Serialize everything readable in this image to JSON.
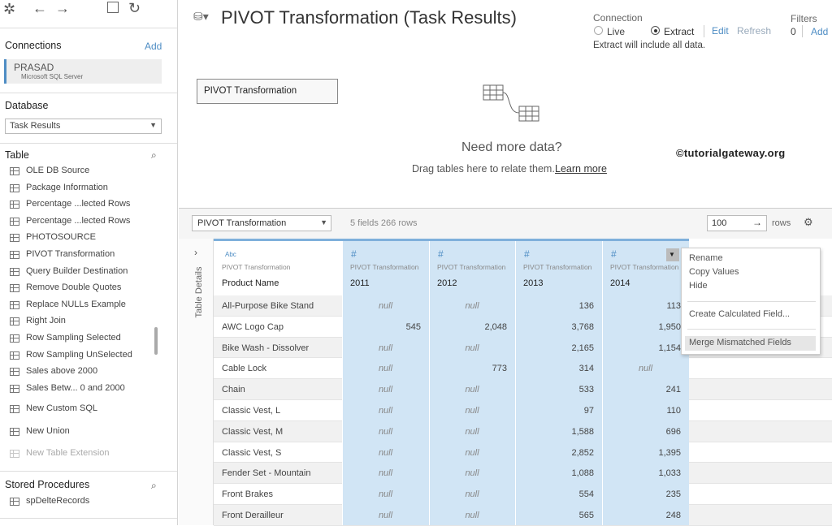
{
  "sidebar": {
    "connections_label": "Connections",
    "add": "Add",
    "connection": {
      "name": "PRASAD",
      "type": "Microsoft SQL Server"
    },
    "database_label": "Database",
    "database": "Task Results",
    "table_label": "Table",
    "tables": [
      "OLE DB Source",
      "Package Information",
      "Percentage ...lected Rows",
      "Percentage ...lected Rows",
      "PHOTOSOURCE",
      "PIVOT Transformation",
      "Query Builder Destination",
      "Remove Double Quotes",
      "Replace NULLs Example",
      "Right Join",
      "Row Sampling Selected",
      "Row Sampling UnSelected",
      "Sales above 2000",
      "Sales Betw... 0 and 2000"
    ],
    "actions": [
      "New Custom SQL",
      "New Union",
      "New Table Extension"
    ],
    "stored_procedures_label": "Stored Procedures",
    "procedures": [
      "spDelteRecords"
    ]
  },
  "header": {
    "title": "PIVOT Transformation (Task Results)",
    "connection_label": "Connection",
    "live": "Live",
    "extract": "Extract",
    "edit": "Edit",
    "refresh": "Refresh",
    "extract_note": "Extract will include all data.",
    "filters_label": "Filters",
    "filters_count": "0",
    "filters_add": "Add"
  },
  "canvas": {
    "table": "PIVOT Transformation",
    "prompt": "Need more data?",
    "hint": "Drag tables here to relate them.",
    "link": "Learn more",
    "watermark": "©tutorialgateway.org"
  },
  "grid_bar": {
    "source": "PIVOT Transformation",
    "summary": "5 fields 266 rows",
    "rows_value": "100",
    "rows_label": "rows"
  },
  "side_tab": "Table Details",
  "table": {
    "columns": [
      {
        "type": "Abc",
        "source": "PIVOT Transformation",
        "name": "Product Name"
      },
      {
        "type": "#",
        "source": "PIVOT Transformation",
        "name": "2011"
      },
      {
        "type": "#",
        "source": "PIVOT Transformation",
        "name": "2012"
      },
      {
        "type": "#",
        "source": "PIVOT Transformation",
        "name": "2013"
      },
      {
        "type": "#",
        "source": "PIVOT Transformation",
        "name": "2014"
      }
    ],
    "rows": [
      [
        "All-Purpose Bike Stand",
        "null",
        "null",
        "136",
        "113"
      ],
      [
        "AWC Logo Cap",
        "545",
        "2,048",
        "3,768",
        "1,950"
      ],
      [
        "Bike Wash - Dissolver",
        "null",
        "null",
        "2,165",
        "1,154"
      ],
      [
        "Cable Lock",
        "null",
        "773",
        "314",
        "null"
      ],
      [
        "Chain",
        "null",
        "null",
        "533",
        "241"
      ],
      [
        "Classic Vest, L",
        "null",
        "null",
        "97",
        "110"
      ],
      [
        "Classic Vest, M",
        "null",
        "null",
        "1,588",
        "696"
      ],
      [
        "Classic Vest, S",
        "null",
        "null",
        "2,852",
        "1,395"
      ],
      [
        "Fender Set - Mountain",
        "null",
        "null",
        "1,088",
        "1,033"
      ],
      [
        "Front Brakes",
        "null",
        "null",
        "554",
        "235"
      ],
      [
        "Front Derailleur",
        "null",
        "null",
        "565",
        "248"
      ]
    ]
  },
  "menu": {
    "items": [
      "Rename",
      "Copy Values",
      "Hide",
      "Create Calculated Field...",
      "Merge Mismatched Fields"
    ]
  }
}
